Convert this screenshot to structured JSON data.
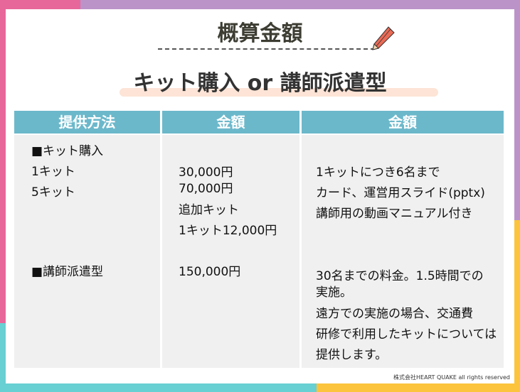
{
  "title": "概算金額",
  "subtitle": "キット購入 or 講師派遣型",
  "colors": {
    "pink": "#e8679a",
    "purple": "#bb93c9",
    "teal": "#68cfd3",
    "yellow": "#fcc43c",
    "header": "#6cb8cb"
  },
  "table": {
    "headers": [
      "提供方法",
      "金額",
      "金額"
    ],
    "col1": [
      "■キット購入",
      "1キット",
      "5キット",
      "■講師派遣型"
    ],
    "col2": [
      "30,000円",
      "70,000円",
      "追加キット",
      "1キット12,000円",
      "150,000円"
    ],
    "col3": [
      "1キットにつき6名まで",
      "カード、運営用スライド(pptx)",
      "講師用の動画マニュアル付き",
      "30名までの料金。1.5時間での",
      "実施。",
      "遠方での実施の場合、交通費",
      "研修で利用したキットについては",
      "提供します。"
    ]
  },
  "footer": "株式会社HEART QUAKE all rights reserved"
}
